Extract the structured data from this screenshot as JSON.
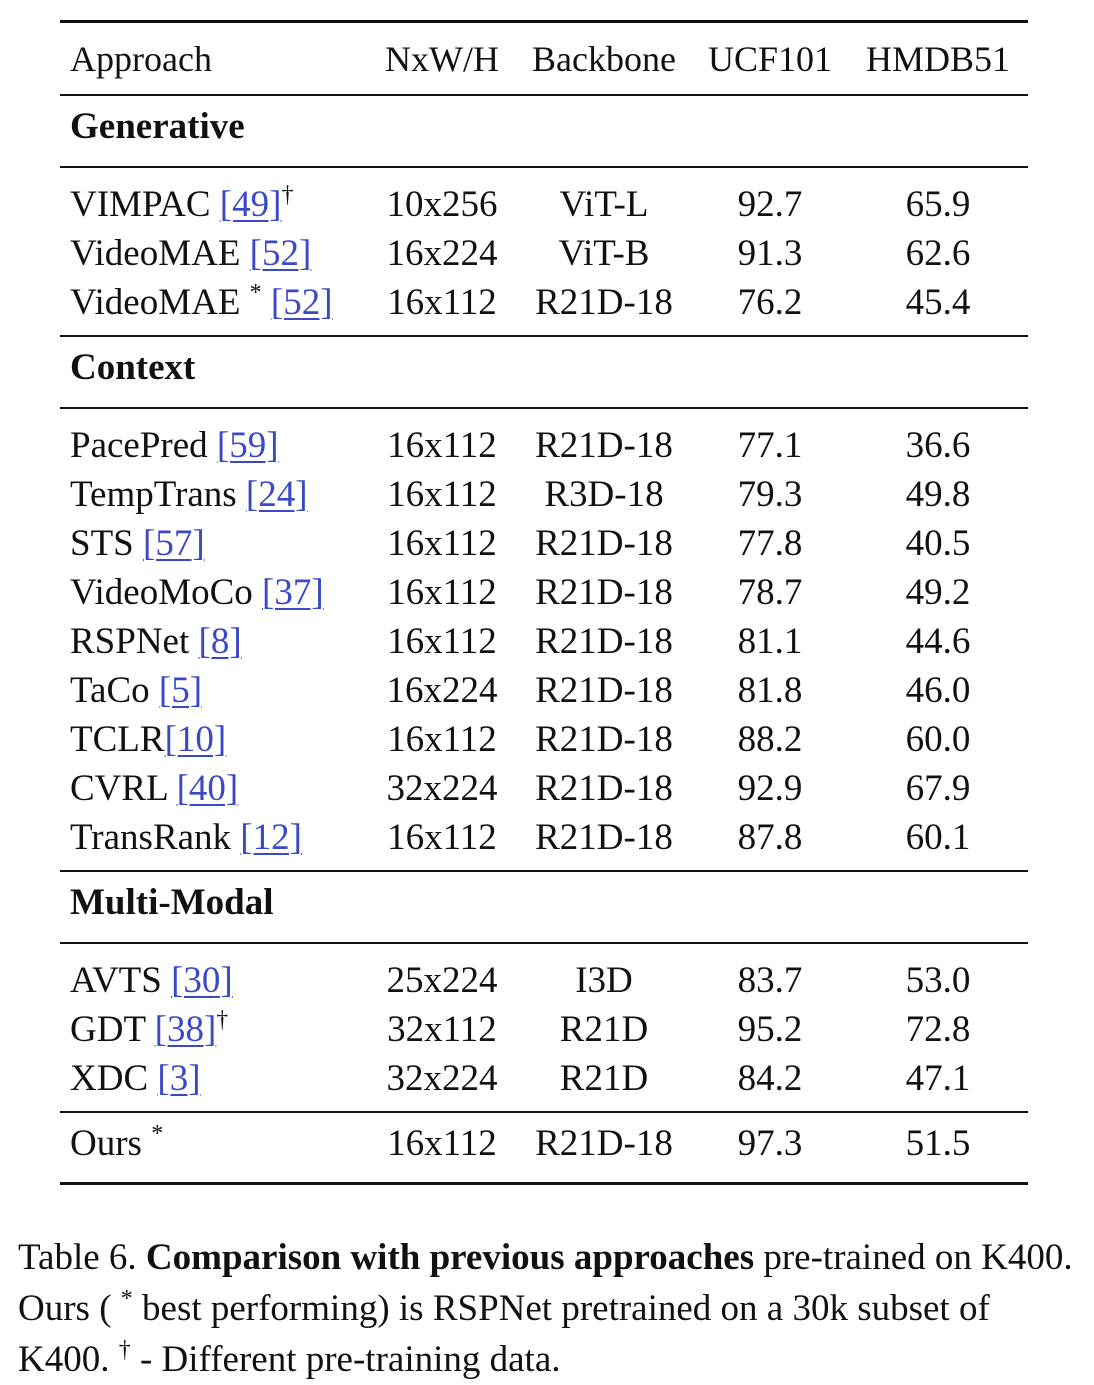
{
  "table": {
    "header": [
      "Approach",
      "NxW/H",
      "Backbone",
      "UCF101",
      "HMDB51"
    ],
    "sections": [
      {
        "title": "Generative",
        "rows": [
          {
            "name": "VIMPAC",
            "cite": "[49]",
            "mark": "†",
            "mark_after": true,
            "res": "10x256",
            "backbone": "ViT-L",
            "ucf": "92.7",
            "hmdb": "65.9"
          },
          {
            "name": "VideoMAE",
            "cite": "[52]",
            "mark": "",
            "mark_after": false,
            "res": "16x224",
            "backbone": "ViT-B",
            "ucf": "91.3",
            "hmdb": "62.6"
          },
          {
            "name": "VideoMAE",
            "cite": "[52]",
            "mark": "*",
            "mark_after": false,
            "res": "16x112",
            "backbone": "R21D-18",
            "ucf": "76.2",
            "hmdb": "45.4"
          }
        ]
      },
      {
        "title": "Context",
        "rows": [
          {
            "name": "PacePred",
            "cite": "[59]",
            "mark": "",
            "mark_after": false,
            "res": "16x112",
            "backbone": "R21D-18",
            "ucf": "77.1",
            "hmdb": "36.6"
          },
          {
            "name": "TempTrans",
            "cite": "[24]",
            "mark": "",
            "mark_after": false,
            "res": "16x112",
            "backbone": "R3D-18",
            "ucf": "79.3",
            "hmdb": "49.8"
          },
          {
            "name": "STS",
            "cite": "[57]",
            "mark": "",
            "mark_after": false,
            "res": "16x112",
            "backbone": "R21D-18",
            "ucf": "77.8",
            "hmdb": "40.5"
          },
          {
            "name": "VideoMoCo",
            "cite": "[37]",
            "mark": "",
            "mark_after": false,
            "res": "16x112",
            "backbone": "R21D-18",
            "ucf": "78.7",
            "hmdb": "49.2"
          },
          {
            "name": "RSPNet",
            "cite": "[8]",
            "mark": "",
            "mark_after": false,
            "res": "16x112",
            "backbone": "R21D-18",
            "ucf": "81.1",
            "hmdb": "44.6"
          },
          {
            "name": "TaCo",
            "cite": "[5]",
            "mark": "",
            "mark_after": false,
            "res": "16x224",
            "backbone": "R21D-18",
            "ucf": "81.8",
            "hmdb": "46.0"
          },
          {
            "name": "TCLR",
            "cite": "[10]",
            "mark": "",
            "mark_after": false,
            "nospace": true,
            "res": "16x112",
            "backbone": "R21D-18",
            "ucf": "88.2",
            "hmdb": "60.0"
          },
          {
            "name": "CVRL",
            "cite": "[40]",
            "mark": "",
            "mark_after": false,
            "res": "32x224",
            "backbone": "R21D-18",
            "ucf": "92.9",
            "hmdb": "67.9"
          },
          {
            "name": "TransRank",
            "cite": "[12]",
            "mark": "",
            "mark_after": false,
            "res": "16x112",
            "backbone": "R21D-18",
            "ucf": "87.8",
            "hmdb": "60.1"
          }
        ]
      },
      {
        "title": "Multi-Modal",
        "rows": [
          {
            "name": "AVTS",
            "cite": "[30]",
            "mark": "",
            "mark_after": false,
            "res": "25x224",
            "backbone": "I3D",
            "ucf": "83.7",
            "hmdb": "53.0"
          },
          {
            "name": "GDT",
            "cite": "[38]",
            "mark": "†",
            "mark_after": true,
            "res": "32x112",
            "backbone": "R21D",
            "ucf": "95.2",
            "hmdb": "72.8"
          },
          {
            "name": "XDC",
            "cite": "[3]",
            "mark": "",
            "mark_after": false,
            "res": "32x224",
            "backbone": "R21D",
            "ucf": "84.2",
            "hmdb": "47.1"
          }
        ]
      }
    ],
    "ours": {
      "name": "Ours",
      "mark": "*",
      "res": "16x112",
      "backbone": "R21D-18",
      "ucf": "97.3",
      "hmdb": "51.5"
    }
  },
  "caption": {
    "label": "Table 6.",
    "bold": "Comparison with previous approaches",
    "text1": "pre-trained on K400. Ours (",
    "star": "*",
    "text2": "best performing) is RSPNet pretrained on a 30k subset of K400.",
    "dagger": "†",
    "text3": "- Different pre-training data."
  }
}
